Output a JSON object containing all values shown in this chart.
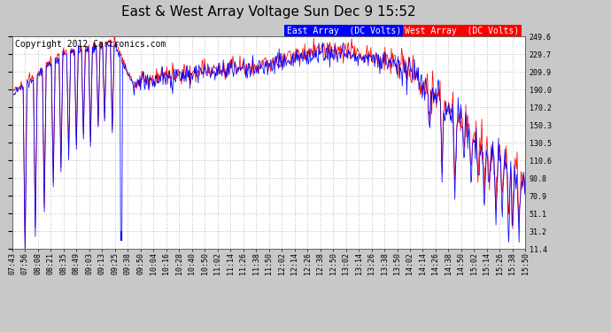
{
  "title": "East & West Array Voltage Sun Dec 9 15:52",
  "copyright": "Copyright 2012 Cartronics.com",
  "legend_east": "East Array  (DC Volts)",
  "legend_west": "West Array  (DC Volts)",
  "east_color": "#0000ff",
  "west_color": "#ff0000",
  "background_color": "#c8c8c8",
  "plot_bg_color": "#ffffff",
  "grid_color": "#aaaaaa",
  "yticks": [
    11.4,
    31.2,
    51.1,
    70.9,
    90.8,
    110.6,
    130.5,
    150.3,
    170.2,
    190.0,
    209.9,
    229.7,
    249.6
  ],
  "ymin": 11.4,
  "ymax": 249.6,
  "title_fontsize": 11,
  "copyright_fontsize": 7,
  "legend_fontsize": 7,
  "tick_fontsize": 6
}
